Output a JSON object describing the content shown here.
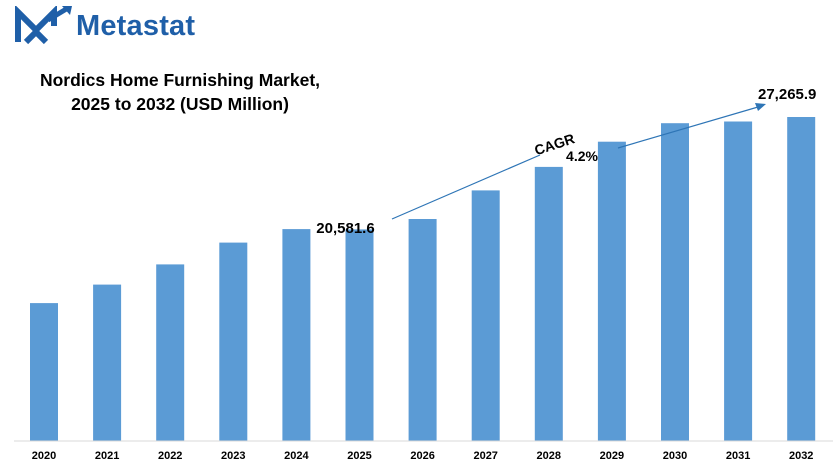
{
  "brand": {
    "name": "Metastat",
    "logo_icon": "metastat-logo-icon",
    "color": "#1f5fa8"
  },
  "title_line1": "Nordics Home Furnishing Market,",
  "title_line2": "2025 to 2032 (USD Million)",
  "cagr": {
    "label": "CAGR",
    "value": "4.2%"
  },
  "chart_data": {
    "type": "bar",
    "title": "Nordics Home Furnishing Market, 2025 to 2032 (USD Million)",
    "categories": [
      "2020",
      "2021",
      "2022",
      "2023",
      "2024",
      "2025",
      "2026",
      "2027",
      "2028",
      "2029",
      "2030",
      "2031",
      "2032"
    ],
    "values": [
      16200,
      17300,
      18500,
      19800,
      20600,
      20581.6,
      21200,
      22900,
      24300,
      25800,
      26900,
      27000,
      27265.9
    ],
    "data_labels": [
      {
        "category": "2025",
        "text": "20,581.6"
      },
      {
        "category": "2032",
        "text": "27,265.9"
      }
    ],
    "bar_color": "#5b9bd5",
    "grid": false,
    "legend": "none"
  }
}
